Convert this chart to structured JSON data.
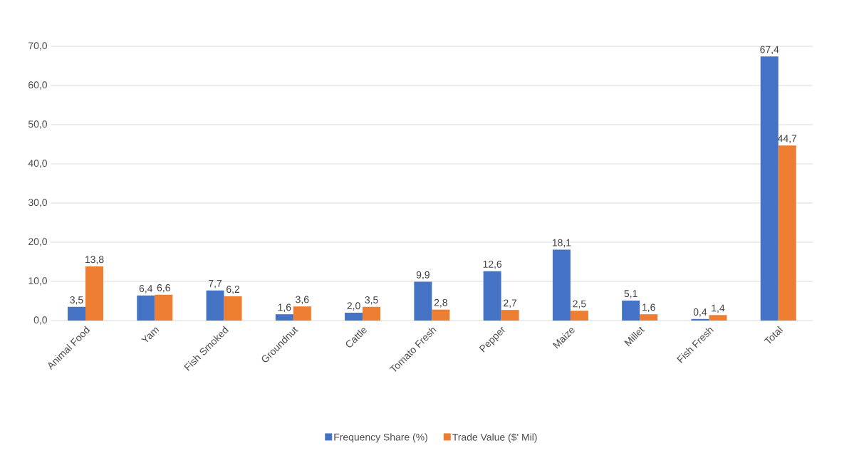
{
  "chart_data": {
    "type": "bar",
    "categories": [
      "Animal Food",
      "Yam",
      "Fish Smoked",
      "Groundnut",
      "Cattle",
      "Tomato Fresh",
      "Pepper",
      "Maize",
      "Millet",
      "Fish Fresh",
      "Total"
    ],
    "series": [
      {
        "name": "Frequency Share (%)",
        "color": "#4472c4",
        "values": [
          3.5,
          6.4,
          7.7,
          1.6,
          2.0,
          9.9,
          12.6,
          18.1,
          5.1,
          0.4,
          67.4
        ],
        "value_labels": [
          "3,5",
          "6,4",
          "7,7",
          "1,6",
          "2,0",
          "9,9",
          "12,6",
          "18,1",
          "5,1",
          "0,4",
          "67,4"
        ]
      },
      {
        "name": "Trade Value ($' Mil)",
        "color": "#ed7d31",
        "values": [
          13.8,
          6.6,
          6.2,
          3.6,
          3.5,
          2.8,
          2.7,
          2.5,
          1.6,
          1.4,
          44.7
        ],
        "value_labels": [
          "13,8",
          "6,6",
          "6,2",
          "3,6",
          "3,5",
          "2,8",
          "2,7",
          "2,5",
          "1,6",
          "1,4",
          "44,7"
        ]
      }
    ],
    "ylim": [
      0,
      70
    ],
    "yticks": [
      {
        "value": 0,
        "label": "0,0"
      },
      {
        "value": 10,
        "label": "10,0"
      },
      {
        "value": 20,
        "label": "20,0"
      },
      {
        "value": 30,
        "label": "30,0"
      },
      {
        "value": 40,
        "label": "40,0"
      },
      {
        "value": 50,
        "label": "50,0"
      },
      {
        "value": 60,
        "label": "60,0"
      },
      {
        "value": 70,
        "label": "70,0"
      }
    ],
    "grid": "y",
    "legend": "bottom"
  }
}
